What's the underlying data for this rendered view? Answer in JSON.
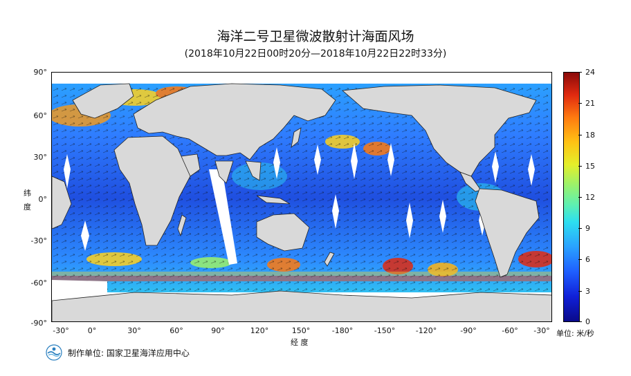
{
  "title": "海洋二号卫星微波散射计海面风场",
  "subtitle": "(2018年10月22日00时20分—2018年10月22日22时33分)",
  "axes": {
    "lat_title": "纬 度",
    "lon_title": "经 度",
    "lat_ticks": [
      "90°",
      "60°",
      "30°",
      "0°",
      "-30°",
      "-60°",
      "-90°"
    ],
    "lon_ticks": [
      "-30°",
      "0°",
      "30°",
      "60°",
      "90°",
      "120°",
      "150°",
      "-180°",
      "-150°",
      "-120°",
      "-90°",
      "-60°",
      "-30°"
    ]
  },
  "colorbar": {
    "ticks": [
      "24",
      "21",
      "18",
      "15",
      "12",
      "9",
      "6",
      "3",
      "0"
    ],
    "unit": "单位: 米/秒",
    "colors": [
      "#0a0a8a",
      "#1f5fff",
      "#2ddff0",
      "#9cf26a",
      "#ffc214",
      "#e02a10",
      "#8a0a0a"
    ]
  },
  "producer": "制作单位: 国家卫星海洋应用中心",
  "colors": {
    "land": "#d9d9d9",
    "no_data": "#ffffff",
    "frame": "#000000"
  }
}
